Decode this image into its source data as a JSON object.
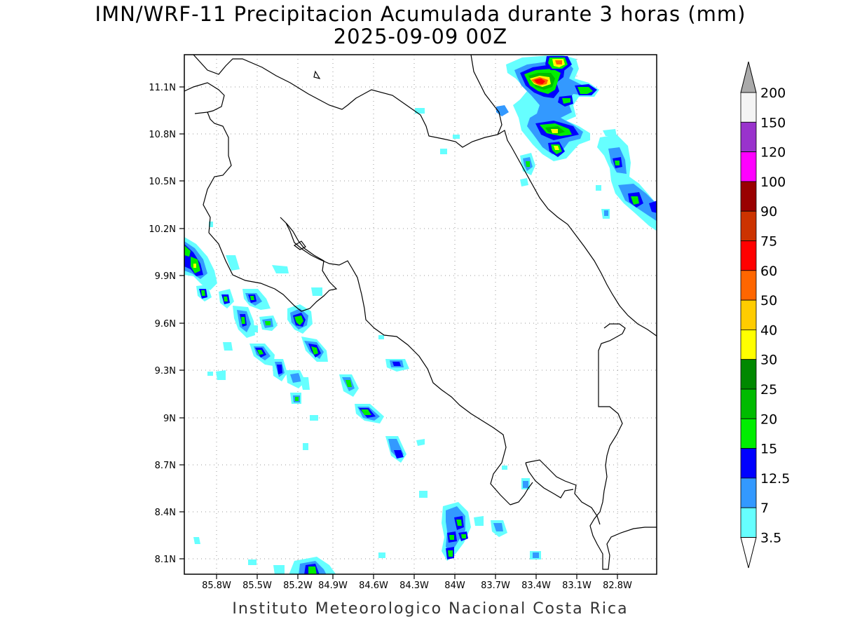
{
  "title_line1": "IMN/WRF-11 Precipitacion Acumulada durante 3 horas (mm)",
  "title_line2": "2025-09-09 00Z",
  "footer": "Instituto Meteorologico Nacional Costa Rica",
  "map": {
    "lat_labels": [
      "11.1N",
      "10.8N",
      "10.5N",
      "10.2N",
      "9.9N",
      "9.6N",
      "9.3N",
      "9N",
      "8.7N",
      "8.4N",
      "8.1N"
    ],
    "lon_labels": [
      "85.8W",
      "85.5W",
      "85.2W",
      "84.9W",
      "84.6W",
      "84.3W",
      "84W",
      "83.7W",
      "83.4W",
      "83.1W",
      "82.8W"
    ]
  },
  "colorbar": {
    "labels": [
      "200",
      "150",
      "120",
      "100",
      "90",
      "75",
      "60",
      "50",
      "40",
      "30",
      "25",
      "20",
      "15",
      "12.5",
      "7",
      "3.5"
    ],
    "colors": [
      "#f4f4f4",
      "#9933cc",
      "#ff00ff",
      "#990000",
      "#cc3300",
      "#ff0000",
      "#ff6600",
      "#ffcc00",
      "#ffff00",
      "#008800",
      "#00bb00",
      "#00ee00",
      "#0000ff",
      "#3399ff",
      "#66ffff"
    ],
    "top_arrow_color": "#aaaaaa",
    "bottom_arrow_color": "#ffffff"
  },
  "precip_colors": {
    "light": "#66ffff",
    "moderate": "#3399ff",
    "heavy": "#0000ff",
    "green15": "#00ee00",
    "green20": "#00bb00",
    "green25": "#008800",
    "yellow": "#ffff00",
    "orange": "#ff6600",
    "red": "#ff0000"
  }
}
